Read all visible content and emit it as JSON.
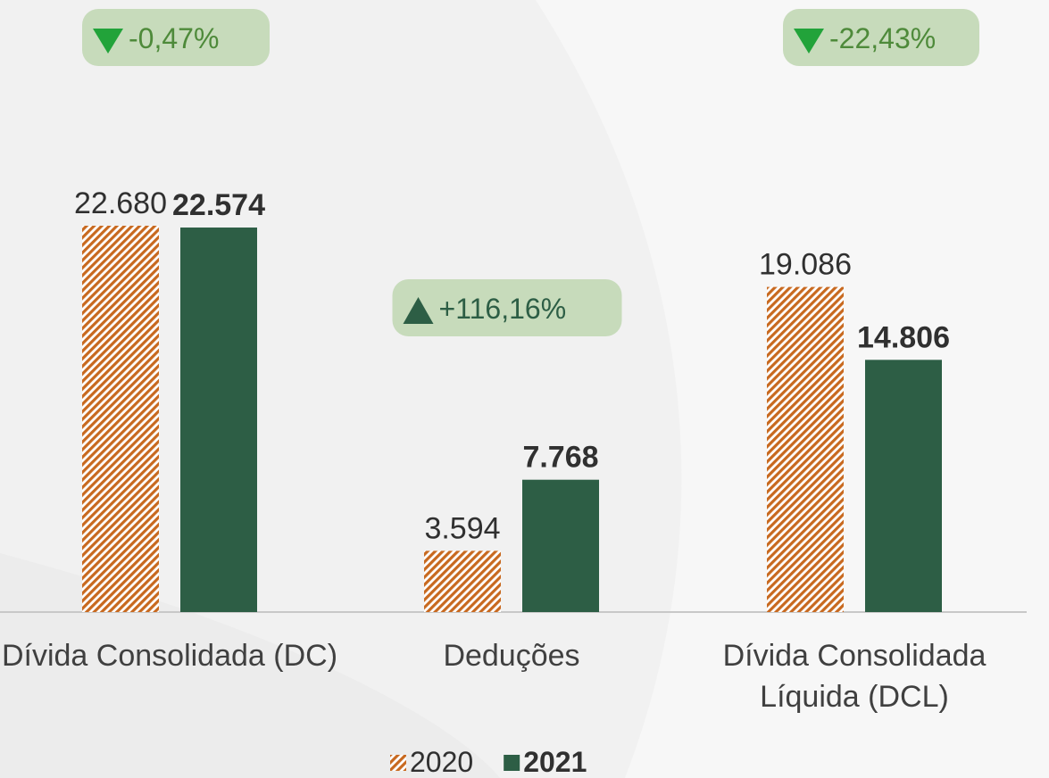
{
  "chart_data": {
    "type": "bar",
    "categories": [
      "Dívida Consolidada (DC)",
      "Deduções",
      "Dívida Consolidada Líquida (DCL)"
    ],
    "series": [
      {
        "name": "2020",
        "color": "#c8691f",
        "pattern": "hatch",
        "values": [
          22680,
          3594,
          19086
        ],
        "value_labels": [
          "22.680",
          "3.594",
          "19.086"
        ]
      },
      {
        "name": "2021",
        "color": "#2d5e45",
        "values": [
          22574,
          7768,
          14806
        ],
        "value_labels": [
          "22.574",
          "7.768",
          "14.806"
        ]
      }
    ],
    "annotations": [
      {
        "text": "-0,47%",
        "direction": "down"
      },
      {
        "text": "+116,16%",
        "direction": "up"
      },
      {
        "text": "-22,43%",
        "direction": "down"
      }
    ],
    "legend": "bottom"
  }
}
